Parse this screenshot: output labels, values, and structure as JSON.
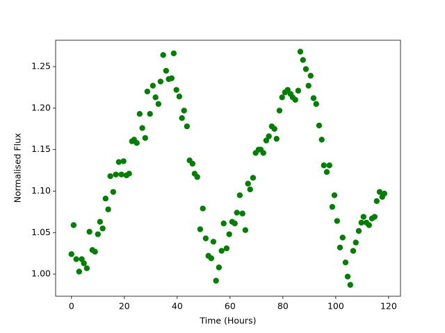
{
  "chart_data": {
    "type": "scatter",
    "xlabel": "Time (Hours)",
    "ylabel": "Normalised Flux",
    "color": "#008000",
    "x": [
      0,
      0.8,
      1.8,
      2.9,
      3.9,
      4.7,
      5.8,
      6.8,
      7.9,
      8.9,
      10.0,
      10.8,
      11.8,
      12.9,
      13.9,
      14.7,
      15.8,
      16.8,
      17.9,
      18.9,
      19.7,
      20.8,
      21.8,
      22.9,
      23.7,
      24.7,
      25.8,
      26.8,
      27.9,
      28.7,
      29.7,
      30.8,
      31.8,
      32.9,
      33.7,
      34.7,
      35.8,
      36.8,
      37.9,
      38.7,
      39.7,
      40.8,
      41.8,
      42.6,
      43.7,
      44.7,
      45.8,
      46.6,
      47.6,
      48.7,
      49.7,
      50.8,
      51.8,
      52.9,
      53.7,
      54.7,
      55.8,
      56.8,
      57.6,
      58.7,
      59.7,
      60.8,
      61.8,
      62.6,
      63.7,
      64.7,
      65.8,
      66.8,
      67.6,
      68.7,
      69.7,
      70.8,
      71.6,
      72.6,
      73.7,
      74.7,
      75.8,
      76.8,
      77.6,
      78.7,
      79.7,
      80.8,
      81.8,
      82.9,
      83.7,
      84.7,
      85.8,
      86.6,
      87.6,
      88.7,
      89.7,
      90.5,
      91.6,
      92.6,
      93.7,
      94.7,
      95.5,
      96.6,
      97.6,
      98.7,
      99.5,
      100.5,
      101.6,
      102.6,
      103.7,
      104.5,
      105.5,
      106.6,
      107.6,
      108.7,
      109.7,
      110.5,
      111.6,
      112.6,
      113.7,
      114.7,
      115.5,
      116.6,
      117.6,
      118.4
    ],
    "values": [
      1.024,
      1.059,
      1.018,
      1.003,
      1.018,
      1.013,
      1.007,
      1.051,
      1.029,
      1.027,
      1.048,
      1.063,
      1.055,
      1.091,
      1.078,
      1.118,
      1.099,
      1.12,
      1.135,
      1.12,
      1.136,
      1.119,
      1.121,
      1.16,
      1.162,
      1.158,
      1.193,
      1.176,
      1.164,
      1.22,
      1.193,
      1.227,
      1.213,
      1.205,
      1.232,
      1.264,
      1.245,
      1.235,
      1.236,
      1.266,
      1.222,
      1.214,
      1.188,
      1.197,
      1.178,
      1.137,
      1.133,
      1.121,
      1.117,
      1.054,
      1.079,
      1.043,
      1.022,
      1.019,
      1.039,
      0.992,
      1.008,
      1.028,
      1.061,
      1.031,
      1.048,
      1.063,
      1.061,
      1.074,
      1.095,
      1.073,
      1.053,
      1.109,
      1.102,
      1.116,
      1.146,
      1.15,
      1.15,
      1.146,
      1.161,
      1.166,
      1.178,
      1.175,
      1.163,
      1.197,
      1.213,
      1.219,
      1.222,
      1.217,
      1.213,
      1.21,
      1.221,
      1.268,
      1.258,
      1.247,
      1.227,
      1.239,
      1.212,
      1.205,
      1.179,
      1.162,
      1.131,
      1.123,
      1.131,
      1.081,
      1.095,
      1.064,
      1.032,
      1.044,
      1.014,
      0.997,
      0.987,
      1.028,
      1.038,
      1.052,
      1.062,
      1.069,
      1.062,
      1.059,
      1.067,
      1.069,
      1.088,
      1.099,
      1.093,
      1.097
    ],
    "xlim": [
      -6,
      124.5
    ],
    "ylim": [
      0.9733,
      1.2818
    ],
    "xticks": [
      0,
      20,
      40,
      60,
      80,
      100,
      120
    ],
    "yticks": [
      {
        "value": 1,
        "label": "1.00"
      },
      1.05,
      {
        "value": 1.1,
        "label": "1.10"
      },
      1.15,
      {
        "value": 1.2,
        "label": "1.20"
      },
      1.25
    ]
  }
}
